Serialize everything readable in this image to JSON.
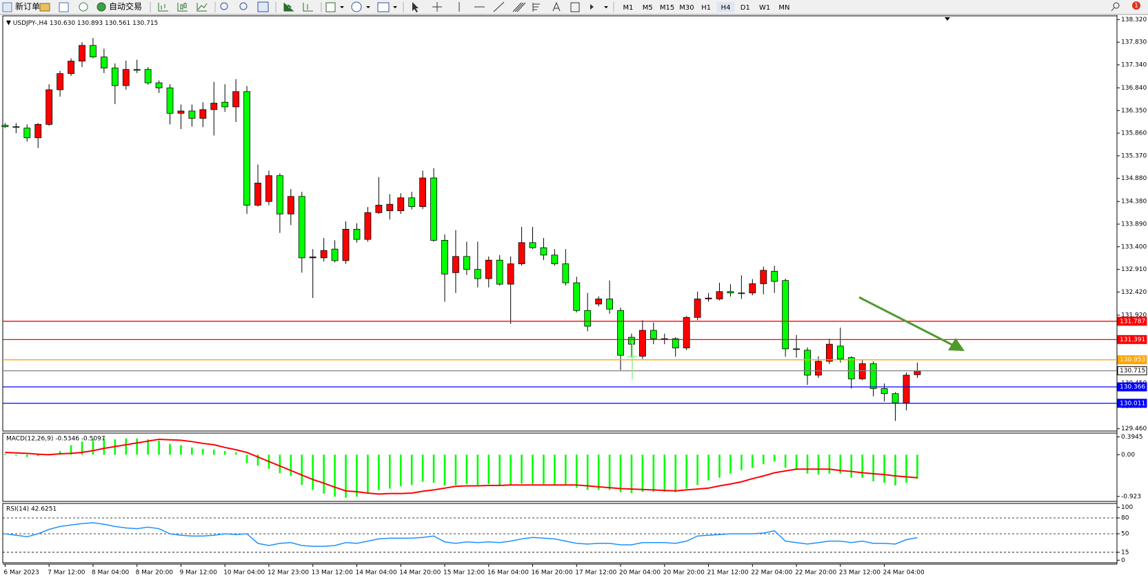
{
  "toolbar": {
    "new_order": "新订单",
    "auto_trading": "自动交易",
    "timeframes": [
      "M1",
      "M5",
      "M15",
      "M30",
      "H1",
      "H4",
      "D1",
      "W1",
      "MN"
    ],
    "badge": "1"
  },
  "chart_data": [
    {
      "type": "candlestick",
      "title": "USDJPY-,H4",
      "subtitle": "130.630 130.893 130.561 130.715",
      "categories": [
        "6 Mar 2023",
        null,
        null,
        null,
        "7 Mar 12:00",
        null,
        null,
        null,
        "8 Mar 04:00",
        null,
        null,
        null,
        "8 Mar 20:00",
        null,
        null,
        null,
        "9 Mar 12:00",
        null,
        null,
        null,
        "10 Mar 04:00",
        null,
        null,
        null,
        "12 Mar 23:00",
        null,
        null,
        null,
        "13 Mar 12:00",
        null,
        null,
        null,
        "14 Mar 04:00",
        null,
        null,
        null,
        "14 Mar 20:00",
        null,
        null,
        null,
        "15 Mar 12:00",
        null,
        null,
        null,
        "16 Mar 04:00",
        null,
        null,
        null,
        "16 Mar 20:00",
        null,
        null,
        null,
        "17 Mar 12:00",
        null,
        null,
        null,
        "20 Mar 04:00",
        null,
        null,
        null,
        "20 Mar 20:00",
        null,
        null,
        null,
        "21 Mar 12:00",
        null,
        null,
        null,
        "22 Mar 04:00",
        null,
        null,
        null,
        "22 Mar 20:00",
        null,
        null,
        null,
        "23 Mar 12:00",
        null,
        null,
        null,
        "24 Mar 04:00",
        null,
        null,
        null
      ],
      "open": [
        136.03,
        136.0,
        135.97,
        135.76,
        136.05,
        136.8,
        137.15,
        137.42,
        137.76,
        137.51,
        137.27,
        136.89,
        137.24,
        137.24,
        136.95,
        136.84,
        136.29,
        136.34,
        136.18,
        136.37,
        136.53,
        136.43,
        136.76,
        134.3,
        134.38,
        134.94,
        134.11,
        134.49,
        133.16,
        133.16,
        133.35,
        133.1,
        133.78,
        133.56,
        134.14,
        134.18,
        134.18,
        134.46,
        134.27,
        134.89,
        133.54,
        132.84,
        133.19,
        132.91,
        132.71,
        133.11,
        132.59,
        133.03,
        133.49,
        133.38,
        133.22,
        133.03,
        132.62,
        132.02,
        132.16,
        132.27,
        132.02,
        131.44,
        131.03,
        131.59,
        131.41,
        131.41,
        131.21,
        131.87,
        132.27,
        132.27,
        132.43,
        132.4,
        132.4,
        132.6,
        132.87,
        132.67,
        131.19,
        131.16,
        130.62,
        130.92,
        131.25,
        131.0,
        130.54,
        130.87,
        130.33,
        130.22,
        130.02,
        130.63
      ],
      "high": [
        136.08,
        136.08,
        136.05,
        136.08,
        136.92,
        137.21,
        137.48,
        137.83,
        137.92,
        137.69,
        137.37,
        137.43,
        137.45,
        137.29,
        137.0,
        136.92,
        136.48,
        136.48,
        136.53,
        136.97,
        136.92,
        137.03,
        136.88,
        135.18,
        135.05,
        134.99,
        134.65,
        134.59,
        133.35,
        133.59,
        133.54,
        133.95,
        133.91,
        134.26,
        134.91,
        134.54,
        134.56,
        134.59,
        135.05,
        135.1,
        133.67,
        133.76,
        133.51,
        133.51,
        133.19,
        133.22,
        133.19,
        133.83,
        133.83,
        133.59,
        133.35,
        133.35,
        132.75,
        132.4,
        132.33,
        132.67,
        132.08,
        131.52,
        131.81,
        131.76,
        131.52,
        131.44,
        131.9,
        132.43,
        132.4,
        132.62,
        132.59,
        132.78,
        132.7,
        132.97,
        132.99,
        132.71,
        131.49,
        131.22,
        131.03,
        131.41,
        131.65,
        131.03,
        130.94,
        130.92,
        130.44,
        130.25,
        130.68,
        130.893
      ],
      "low": [
        135.97,
        135.86,
        135.68,
        135.54,
        136.02,
        136.65,
        137.1,
        137.29,
        137.48,
        137.16,
        136.49,
        136.8,
        137.16,
        136.91,
        136.73,
        136.05,
        135.95,
        136.0,
        135.99,
        135.81,
        136.32,
        136.1,
        134.11,
        134.27,
        134.3,
        133.7,
        133.87,
        132.84,
        132.29,
        133.08,
        133.06,
        133.03,
        133.49,
        133.51,
        134.11,
        133.99,
        134.11,
        134.21,
        134.22,
        133.51,
        132.21,
        132.4,
        132.79,
        132.52,
        132.52,
        132.56,
        131.73,
        132.99,
        133.35,
        133.11,
        132.99,
        132.56,
        131.98,
        131.57,
        132.11,
        131.95,
        130.73,
        131.0,
        130.97,
        131.29,
        131.29,
        131.02,
        131.16,
        131.81,
        132.21,
        132.24,
        132.32,
        132.27,
        132.35,
        132.37,
        132.4,
        131.02,
        131.0,
        130.41,
        130.56,
        130.86,
        130.89,
        130.33,
        130.51,
        130.16,
        130.05,
        129.63,
        129.86,
        130.561
      ],
      "close": [
        136.0,
        135.99,
        135.76,
        136.05,
        136.8,
        137.15,
        137.42,
        137.76,
        137.51,
        137.27,
        136.89,
        137.24,
        137.22,
        136.95,
        136.84,
        136.29,
        136.34,
        136.18,
        136.37,
        136.51,
        136.43,
        136.76,
        134.3,
        134.78,
        134.94,
        134.11,
        134.49,
        133.16,
        133.18,
        133.32,
        133.1,
        133.78,
        133.56,
        134.14,
        134.3,
        134.32,
        134.46,
        134.27,
        134.89,
        133.54,
        132.81,
        133.19,
        132.91,
        132.71,
        133.11,
        132.59,
        133.03,
        133.49,
        133.38,
        133.22,
        133.03,
        132.62,
        132.02,
        131.68,
        132.27,
        132.05,
        131.05,
        131.29,
        131.59,
        131.41,
        131.4,
        131.21,
        131.87,
        132.27,
        132.29,
        132.43,
        132.4,
        132.39,
        132.6,
        132.89,
        132.65,
        131.19,
        131.18,
        130.62,
        130.92,
        131.29,
        130.97,
        130.54,
        130.87,
        130.33,
        130.22,
        130.02,
        130.62,
        130.715
      ],
      "up_color": "#ff0000",
      "down_color": "#00ff00",
      "ylim": [
        129.41,
        138.4
      ],
      "yticks": [
        {
          "value": 138.32,
          "label": "138.320"
        },
        {
          "value": 137.83,
          "label": "137.830"
        },
        {
          "value": 137.34,
          "label": "137.340"
        },
        {
          "value": 136.84,
          "label": "136.840"
        },
        {
          "value": 136.35,
          "label": "136.350"
        },
        {
          "value": 135.86,
          "label": "135.860"
        },
        {
          "value": 135.37,
          "label": "135.370"
        },
        {
          "value": 134.88,
          "label": "134.880"
        },
        {
          "value": 134.38,
          "label": "134.380"
        },
        {
          "value": 133.89,
          "label": "133.890"
        },
        {
          "value": 133.4,
          "label": "133.400"
        },
        {
          "value": 132.91,
          "label": "132.910"
        },
        {
          "value": 132.42,
          "label": "132.420"
        },
        {
          "value": 131.92,
          "label": "131.920"
        },
        {
          "value": 130.45,
          "label": "130.450"
        },
        {
          "value": 129.95,
          "label": "129.950"
        },
        {
          "value": 129.46,
          "label": "129.460"
        }
      ],
      "hlines": [
        {
          "value": 131.787,
          "color": "#ff0000"
        },
        {
          "value": 131.391,
          "color": "#ff0000"
        },
        {
          "value": 130.953,
          "color": "#ffa500"
        },
        {
          "value": 130.715,
          "color": "#808080"
        },
        {
          "value": 130.366,
          "color": "#0000ff"
        },
        {
          "value": 130.011,
          "color": "#0000ff"
        }
      ]
    },
    {
      "type": "macd",
      "title": "MACD(12,26,9) -0.5346 -0.5097",
      "series": [
        {
          "type": "bar",
          "color": "#00ff00",
          "values": [
            0.02,
            -0.02,
            -0.05,
            -0.03,
            0.02,
            0.08,
            0.21,
            0.29,
            0.34,
            0.36,
            0.34,
            0.36,
            0.36,
            0.34,
            0.31,
            0.24,
            0.21,
            0.16,
            0.13,
            0.11,
            0.08,
            0.05,
            -0.18,
            -0.24,
            -0.31,
            -0.41,
            -0.47,
            -0.67,
            -0.78,
            -0.86,
            -0.93,
            -0.95,
            -0.93,
            -0.86,
            -0.78,
            -0.75,
            -0.7,
            -0.67,
            -0.6,
            -0.62,
            -0.68,
            -0.67,
            -0.65,
            -0.67,
            -0.65,
            -0.67,
            -0.68,
            -0.64,
            -0.65,
            -0.65,
            -0.67,
            -0.68,
            -0.73,
            -0.78,
            -0.78,
            -0.78,
            -0.83,
            -0.85,
            -0.82,
            -0.82,
            -0.82,
            -0.83,
            -0.75,
            -0.67,
            -0.57,
            -0.51,
            -0.42,
            -0.34,
            -0.29,
            -0.21,
            -0.15,
            -0.29,
            -0.34,
            -0.42,
            -0.44,
            -0.42,
            -0.42,
            -0.51,
            -0.51,
            -0.59,
            -0.62,
            -0.68,
            -0.62,
            -0.5346
          ]
        },
        {
          "type": "line",
          "color": "#ff0000",
          "values": [
            0.05,
            0.04,
            0.03,
            0.01,
            0.0,
            0.02,
            0.03,
            0.05,
            0.09,
            0.14,
            0.18,
            0.22,
            0.26,
            0.3,
            0.34,
            0.33,
            0.32,
            0.29,
            0.25,
            0.22,
            0.16,
            0.11,
            0.05,
            -0.05,
            -0.15,
            -0.25,
            -0.35,
            -0.45,
            -0.55,
            -0.63,
            -0.72,
            -0.8,
            -0.82,
            -0.85,
            -0.87,
            -0.86,
            -0.86,
            -0.85,
            -0.81,
            -0.78,
            -0.74,
            -0.7,
            -0.69,
            -0.69,
            -0.68,
            -0.68,
            -0.67,
            -0.67,
            -0.67,
            -0.67,
            -0.67,
            -0.67,
            -0.67,
            -0.69,
            -0.71,
            -0.73,
            -0.75,
            -0.76,
            -0.77,
            -0.78,
            -0.79,
            -0.8,
            -0.78,
            -0.76,
            -0.74,
            -0.69,
            -0.65,
            -0.6,
            -0.53,
            -0.47,
            -0.4,
            -0.36,
            -0.32,
            -0.32,
            -0.32,
            -0.32,
            -0.35,
            -0.37,
            -0.4,
            -0.42,
            -0.44,
            -0.47,
            -0.49,
            -0.5097
          ]
        }
      ],
      "ylim": [
        -1.033,
        0.478
      ],
      "yticks": [
        0.3945,
        {
          "value": 0,
          "label": "0.00"
        },
        -0.923
      ]
    },
    {
      "type": "line",
      "title": "RSI(14) 42.6251",
      "color": "#1e90ff",
      "values": [
        50.0,
        47.2,
        44.4,
        50.0,
        58.3,
        63.9,
        66.7,
        69.4,
        70.8,
        68.1,
        63.9,
        61.1,
        59.7,
        62.5,
        59.7,
        50.0,
        47.2,
        45.8,
        45.8,
        47.2,
        50.0,
        48.6,
        50.0,
        31.9,
        27.8,
        31.9,
        33.3,
        27.8,
        26.4,
        26.4,
        27.8,
        33.3,
        31.9,
        36.1,
        40.3,
        41.7,
        41.7,
        41.7,
        43.1,
        45.8,
        34.7,
        31.9,
        34.7,
        33.3,
        34.7,
        33.3,
        36.1,
        40.3,
        43.1,
        41.7,
        40.3,
        36.1,
        31.9,
        30.6,
        31.9,
        31.9,
        29.2,
        29.2,
        33.3,
        33.3,
        33.3,
        31.9,
        36.1,
        45.8,
        47.2,
        48.6,
        50.0,
        50.0,
        50.0,
        51.4,
        55.6,
        36.1,
        33.3,
        30.6,
        33.3,
        36.1,
        36.1,
        33.3,
        36.1,
        31.9,
        31.9,
        30.6,
        38.9,
        42.6251
      ],
      "ylim": [
        -4.8,
        107.4
      ],
      "yticks": [
        100,
        80,
        50,
        15,
        0
      ],
      "levels": [
        80,
        50,
        15
      ]
    }
  ]
}
